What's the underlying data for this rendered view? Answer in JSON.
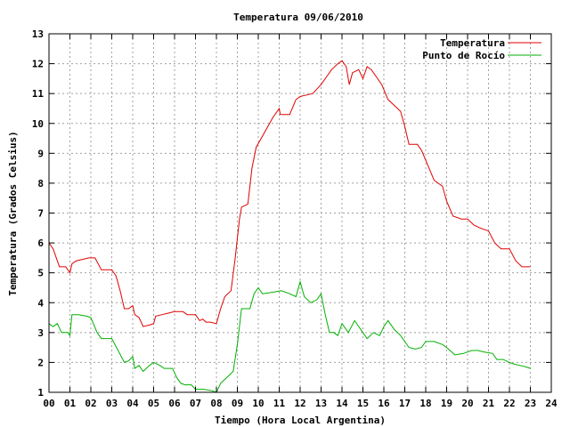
{
  "chart_data": {
    "type": "line",
    "title": "Temperatura 09/06/2010",
    "xlabel": "Tiempo (Hora Local Argentina)",
    "ylabel": "Temperatura (Grados Celsius)",
    "xlim": [
      0,
      24
    ],
    "ylim": [
      1,
      13
    ],
    "grid": true,
    "legend_position": "top-right",
    "x_ticks": [
      "00",
      "01",
      "02",
      "03",
      "04",
      "05",
      "06",
      "07",
      "08",
      "09",
      "10",
      "11",
      "12",
      "13",
      "14",
      "15",
      "16",
      "17",
      "18",
      "19",
      "20",
      "21",
      "22",
      "23",
      "24"
    ],
    "y_ticks": [
      "1",
      "2",
      "3",
      "4",
      "5",
      "6",
      "7",
      "8",
      "9",
      "10",
      "11",
      "12",
      "13"
    ],
    "series": [
      {
        "name": "Temperatura",
        "color": "#e00000",
        "points": [
          [
            0.0,
            6.0
          ],
          [
            0.2,
            5.8
          ],
          [
            0.35,
            5.5
          ],
          [
            0.5,
            5.2
          ],
          [
            0.8,
            5.2
          ],
          [
            1.0,
            5.0
          ],
          [
            1.1,
            5.3
          ],
          [
            1.3,
            5.4
          ],
          [
            1.6,
            5.45
          ],
          [
            1.9,
            5.5
          ],
          [
            2.2,
            5.5
          ],
          [
            2.5,
            5.1
          ],
          [
            3.0,
            5.1
          ],
          [
            3.2,
            4.9
          ],
          [
            3.4,
            4.4
          ],
          [
            3.6,
            3.8
          ],
          [
            3.8,
            3.8
          ],
          [
            4.0,
            3.9
          ],
          [
            4.1,
            3.6
          ],
          [
            4.3,
            3.5
          ],
          [
            4.5,
            3.2
          ],
          [
            4.8,
            3.25
          ],
          [
            5.0,
            3.3
          ],
          [
            5.1,
            3.55
          ],
          [
            5.4,
            3.6
          ],
          [
            5.7,
            3.65
          ],
          [
            6.0,
            3.7
          ],
          [
            6.4,
            3.7
          ],
          [
            6.6,
            3.6
          ],
          [
            7.0,
            3.6
          ],
          [
            7.2,
            3.4
          ],
          [
            7.35,
            3.45
          ],
          [
            7.5,
            3.35
          ],
          [
            7.7,
            3.35
          ],
          [
            8.0,
            3.3
          ],
          [
            8.2,
            3.8
          ],
          [
            8.4,
            4.2
          ],
          [
            8.7,
            4.4
          ],
          [
            8.9,
            5.5
          ],
          [
            9.1,
            6.8
          ],
          [
            9.2,
            7.2
          ],
          [
            9.5,
            7.3
          ],
          [
            9.7,
            8.5
          ],
          [
            9.9,
            9.2
          ],
          [
            10.3,
            9.7
          ],
          [
            10.7,
            10.2
          ],
          [
            11.0,
            10.5
          ],
          [
            11.05,
            10.3
          ],
          [
            11.5,
            10.3
          ],
          [
            11.8,
            10.8
          ],
          [
            12.0,
            10.9
          ],
          [
            12.3,
            10.95
          ],
          [
            12.6,
            11.0
          ],
          [
            13.0,
            11.3
          ],
          [
            13.3,
            11.6
          ],
          [
            13.5,
            11.8
          ],
          [
            13.8,
            12.0
          ],
          [
            14.0,
            12.1
          ],
          [
            14.2,
            11.9
          ],
          [
            14.35,
            11.3
          ],
          [
            14.5,
            11.7
          ],
          [
            14.8,
            11.8
          ],
          [
            15.0,
            11.5
          ],
          [
            15.2,
            11.9
          ],
          [
            15.4,
            11.8
          ],
          [
            15.6,
            11.6
          ],
          [
            15.9,
            11.3
          ],
          [
            16.2,
            10.8
          ],
          [
            16.5,
            10.6
          ],
          [
            16.8,
            10.4
          ],
          [
            17.0,
            9.9
          ],
          [
            17.2,
            9.3
          ],
          [
            17.6,
            9.3
          ],
          [
            17.8,
            9.1
          ],
          [
            18.1,
            8.6
          ],
          [
            18.4,
            8.1
          ],
          [
            18.8,
            7.9
          ],
          [
            19.0,
            7.4
          ],
          [
            19.3,
            6.9
          ],
          [
            19.7,
            6.8
          ],
          [
            20.0,
            6.8
          ],
          [
            20.3,
            6.6
          ],
          [
            20.6,
            6.5
          ],
          [
            21.0,
            6.4
          ],
          [
            21.3,
            6.0
          ],
          [
            21.6,
            5.8
          ],
          [
            22.0,
            5.8
          ],
          [
            22.3,
            5.4
          ],
          [
            22.6,
            5.2
          ],
          [
            23.0,
            5.2
          ]
        ]
      },
      {
        "name": "Punto de Rocío",
        "color": "#00b000",
        "points": [
          [
            0.0,
            3.3
          ],
          [
            0.2,
            3.2
          ],
          [
            0.4,
            3.3
          ],
          [
            0.6,
            3.0
          ],
          [
            0.9,
            3.0
          ],
          [
            1.0,
            2.9
          ],
          [
            1.1,
            3.6
          ],
          [
            1.4,
            3.6
          ],
          [
            1.8,
            3.55
          ],
          [
            2.0,
            3.5
          ],
          [
            2.3,
            3.0
          ],
          [
            2.5,
            2.8
          ],
          [
            3.0,
            2.8
          ],
          [
            3.3,
            2.4
          ],
          [
            3.6,
            2.0
          ],
          [
            3.8,
            2.05
          ],
          [
            4.0,
            2.2
          ],
          [
            4.1,
            1.8
          ],
          [
            4.3,
            1.9
          ],
          [
            4.5,
            1.7
          ],
          [
            4.8,
            1.9
          ],
          [
            5.0,
            2.0
          ],
          [
            5.3,
            1.9
          ],
          [
            5.5,
            1.8
          ],
          [
            5.9,
            1.8
          ],
          [
            6.1,
            1.5
          ],
          [
            6.3,
            1.3
          ],
          [
            6.5,
            1.25
          ],
          [
            6.8,
            1.25
          ],
          [
            7.0,
            1.1
          ],
          [
            7.4,
            1.1
          ],
          [
            7.8,
            1.05
          ],
          [
            8.0,
            1.0
          ],
          [
            8.2,
            1.3
          ],
          [
            8.5,
            1.5
          ],
          [
            8.8,
            1.7
          ],
          [
            9.0,
            2.6
          ],
          [
            9.2,
            3.8
          ],
          [
            9.6,
            3.8
          ],
          [
            9.8,
            4.3
          ],
          [
            10.0,
            4.5
          ],
          [
            10.2,
            4.3
          ],
          [
            10.7,
            4.35
          ],
          [
            11.1,
            4.4
          ],
          [
            11.5,
            4.3
          ],
          [
            11.8,
            4.2
          ],
          [
            12.0,
            4.7
          ],
          [
            12.2,
            4.2
          ],
          [
            12.5,
            4.0
          ],
          [
            12.8,
            4.1
          ],
          [
            13.0,
            4.3
          ],
          [
            13.2,
            3.6
          ],
          [
            13.4,
            3.0
          ],
          [
            13.6,
            3.0
          ],
          [
            13.8,
            2.9
          ],
          [
            14.0,
            3.3
          ],
          [
            14.3,
            3.0
          ],
          [
            14.6,
            3.4
          ],
          [
            15.0,
            3.0
          ],
          [
            15.2,
            2.8
          ],
          [
            15.5,
            3.0
          ],
          [
            15.8,
            2.9
          ],
          [
            16.0,
            3.2
          ],
          [
            16.2,
            3.4
          ],
          [
            16.5,
            3.1
          ],
          [
            16.8,
            2.9
          ],
          [
            17.2,
            2.5
          ],
          [
            17.5,
            2.45
          ],
          [
            17.8,
            2.5
          ],
          [
            18.0,
            2.7
          ],
          [
            18.4,
            2.7
          ],
          [
            18.8,
            2.6
          ],
          [
            19.0,
            2.5
          ],
          [
            19.4,
            2.25
          ],
          [
            19.8,
            2.3
          ],
          [
            20.0,
            2.35
          ],
          [
            20.2,
            2.4
          ],
          [
            20.5,
            2.4
          ],
          [
            20.8,
            2.35
          ],
          [
            21.2,
            2.3
          ],
          [
            21.4,
            2.1
          ],
          [
            21.7,
            2.1
          ],
          [
            22.0,
            2.0
          ],
          [
            22.2,
            1.95
          ],
          [
            22.5,
            1.9
          ],
          [
            22.8,
            1.85
          ],
          [
            23.0,
            1.8
          ]
        ]
      }
    ]
  }
}
